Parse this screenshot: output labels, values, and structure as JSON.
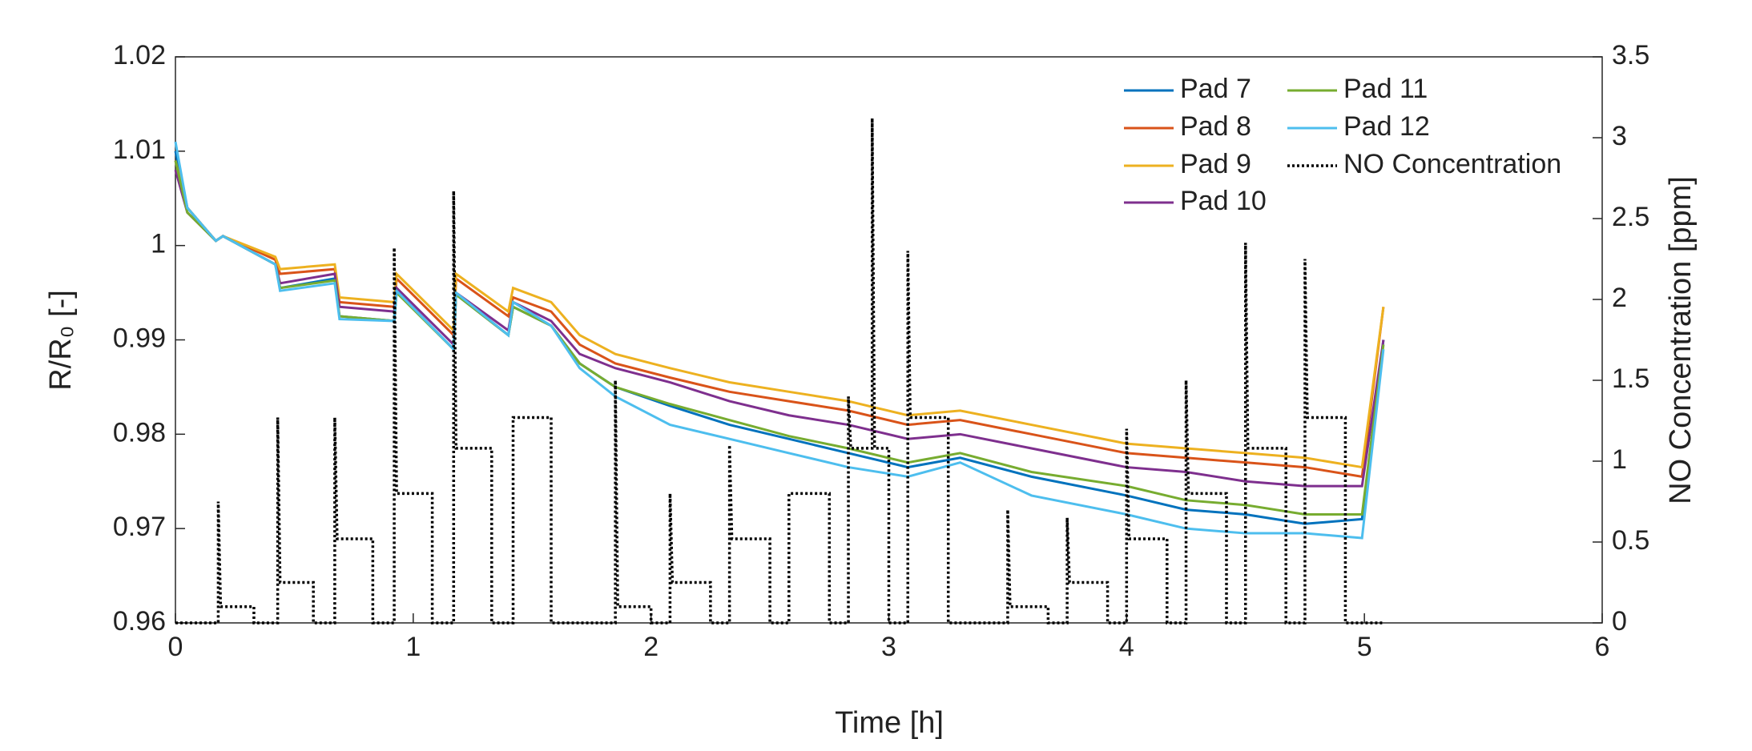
{
  "chart_data": {
    "type": "line",
    "xlabel": "Time [h]",
    "ylabel": "R/R₀ [-]",
    "y2label": "NO Concentration [ppm]",
    "xlim": [
      0,
      6
    ],
    "xticks": [
      0,
      1,
      2,
      3,
      4,
      5,
      6
    ],
    "ylim": [
      0.96,
      1.02
    ],
    "yticks": [
      0.96,
      0.97,
      0.98,
      0.99,
      1,
      1.01,
      1.02
    ],
    "y2lim": [
      0,
      3.5
    ],
    "y2ticks": [
      0,
      0.5,
      1,
      1.5,
      2,
      2.5,
      3,
      3.5
    ],
    "legend": "northeast",
    "grid": false,
    "x": [
      0,
      0.05,
      0.17,
      0.2,
      0.42,
      0.44,
      0.67,
      0.69,
      0.92,
      0.93,
      1.17,
      1.18,
      1.4,
      1.42,
      1.58,
      1.7,
      1.85,
      2.08,
      2.33,
      2.58,
      2.83,
      3.08,
      3.3,
      3.6,
      4.0,
      4.25,
      4.5,
      4.75,
      4.99,
      5.08
    ],
    "series": [
      {
        "name": "Pad 7",
        "color": "#0072BD",
        "values": [
          1.01,
          1.004,
          1.0005,
          1.001,
          0.998,
          0.9955,
          0.9965,
          0.9925,
          0.992,
          0.9952,
          0.989,
          0.9948,
          0.9905,
          0.9935,
          0.9915,
          0.9875,
          0.985,
          0.983,
          0.981,
          0.9795,
          0.978,
          0.9765,
          0.9775,
          0.9755,
          0.9735,
          0.972,
          0.9715,
          0.9705,
          0.971,
          0.99
        ]
      },
      {
        "name": "Pad 8",
        "color": "#D95319",
        "values": [
          1.009,
          1.004,
          1.0005,
          1.001,
          0.9985,
          0.997,
          0.9975,
          0.994,
          0.9935,
          0.9965,
          0.9905,
          0.9965,
          0.9925,
          0.9945,
          0.993,
          0.9895,
          0.9875,
          0.986,
          0.9845,
          0.9835,
          0.9825,
          0.981,
          0.9815,
          0.98,
          0.978,
          0.9775,
          0.977,
          0.9765,
          0.9755,
          0.9935
        ]
      },
      {
        "name": "Pad 9",
        "color": "#EDB120",
        "values": [
          1.009,
          1.004,
          1.0005,
          1.001,
          0.9988,
          0.9975,
          0.998,
          0.9945,
          0.994,
          0.997,
          0.991,
          0.997,
          0.993,
          0.9955,
          0.994,
          0.9905,
          0.9885,
          0.987,
          0.9855,
          0.9845,
          0.9835,
          0.982,
          0.9825,
          0.981,
          0.979,
          0.9785,
          0.978,
          0.9775,
          0.9765,
          0.9935
        ]
      },
      {
        "name": "Pad 10",
        "color": "#7E2F8E",
        "values": [
          1.008,
          1.0035,
          1.0005,
          1.001,
          0.998,
          0.996,
          0.997,
          0.9935,
          0.993,
          0.9955,
          0.9895,
          0.995,
          0.991,
          0.994,
          0.992,
          0.9885,
          0.987,
          0.9855,
          0.9835,
          0.982,
          0.981,
          0.9795,
          0.98,
          0.9785,
          0.9765,
          0.976,
          0.975,
          0.9745,
          0.9745,
          0.99
        ]
      },
      {
        "name": "Pad 11",
        "color": "#77AC30",
        "values": [
          1.009,
          1.0035,
          1.0005,
          1.001,
          0.998,
          0.9955,
          0.9963,
          0.9925,
          0.992,
          0.995,
          0.989,
          0.9948,
          0.9905,
          0.9935,
          0.9915,
          0.9875,
          0.985,
          0.9832,
          0.9815,
          0.9798,
          0.9785,
          0.977,
          0.978,
          0.976,
          0.9745,
          0.973,
          0.9725,
          0.9715,
          0.9715,
          0.9895
        ]
      },
      {
        "name": "Pad 12",
        "color": "#4DBEEE",
        "values": [
          1.011,
          1.004,
          1.0005,
          1.001,
          0.998,
          0.9952,
          0.996,
          0.9922,
          0.992,
          0.9952,
          0.989,
          0.995,
          0.9905,
          0.994,
          0.9915,
          0.987,
          0.984,
          0.981,
          0.9795,
          0.978,
          0.9765,
          0.9755,
          0.977,
          0.9735,
          0.9715,
          0.97,
          0.9695,
          0.9695,
          0.969,
          0.989
        ]
      },
      {
        "name": "NO Concentration",
        "color": "#000000",
        "axis": "y2",
        "dashed": true,
        "x": [
          0,
          0.18,
          0.18,
          0.19,
          0.33,
          0.33,
          0.43,
          0.43,
          0.44,
          0.58,
          0.58,
          0.67,
          0.67,
          0.68,
          0.83,
          0.83,
          0.92,
          0.92,
          0.93,
          1.08,
          1.08,
          1.17,
          1.17,
          1.18,
          1.33,
          1.33,
          1.42,
          1.42,
          1.43,
          1.58,
          1.58,
          1.85,
          1.85,
          1.86,
          2.0,
          2.0,
          2.08,
          2.08,
          2.09,
          2.25,
          2.25,
          2.33,
          2.33,
          2.34,
          2.5,
          2.5,
          2.58,
          2.58,
          2.59,
          2.75,
          2.75,
          2.83,
          2.83,
          2.84,
          2.93,
          2.93,
          2.94,
          3.0,
          3.0,
          3.08,
          3.08,
          3.09,
          3.25,
          3.25,
          3.5,
          3.5,
          3.51,
          3.67,
          3.67,
          3.75,
          3.75,
          3.76,
          3.92,
          3.92,
          4.0,
          4.0,
          4.01,
          4.17,
          4.17,
          4.25,
          4.25,
          4.26,
          4.42,
          4.42,
          4.5,
          4.5,
          4.51,
          4.67,
          4.67,
          4.75,
          4.75,
          4.76,
          4.92,
          4.92,
          5.08
        ],
        "values": [
          0,
          0,
          0.75,
          0.1,
          0.1,
          0,
          0,
          1.27,
          0.25,
          0.25,
          0,
          0,
          1.27,
          0.52,
          0.52,
          0,
          0,
          2.32,
          0.8,
          0.8,
          0,
          0,
          2.67,
          1.08,
          1.08,
          0,
          0,
          1.27,
          1.27,
          1.27,
          0,
          0,
          1.5,
          0.1,
          0.1,
          0,
          0,
          0.8,
          0.25,
          0.25,
          0,
          0,
          1.1,
          0.52,
          0.52,
          0,
          0,
          0.8,
          0.8,
          0.8,
          0,
          0,
          1.4,
          1.08,
          1.08,
          3.12,
          1.08,
          1.08,
          0,
          0,
          2.3,
          1.27,
          1.27,
          0,
          0,
          0.7,
          0.1,
          0.1,
          0,
          0,
          0.65,
          0.25,
          0.25,
          0,
          0,
          1.2,
          0.52,
          0.52,
          0,
          0,
          1.5,
          0.8,
          0.8,
          0,
          0,
          2.35,
          1.08,
          1.08,
          0,
          0,
          2.25,
          1.27,
          1.27,
          0,
          0
        ]
      }
    ]
  }
}
